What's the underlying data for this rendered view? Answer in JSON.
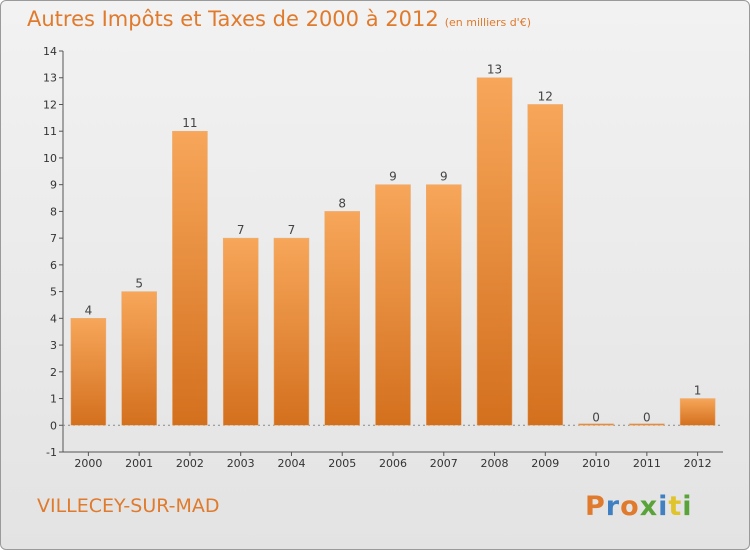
{
  "header": {
    "title": "Autres Impôts et Taxes de 2000 à 2012",
    "unit": "(en milliers d'€)"
  },
  "footer": {
    "commune": "VILLECEY-SUR-MAD",
    "logo": "Proxiti"
  },
  "colors": {
    "bar_light": "#f7a65a",
    "bar_dark": "#d3701e",
    "title": "#e07a2c",
    "logo_letters": [
      "#e07a2c",
      "#3f7fc2",
      "#e07a2c",
      "#5aa33a",
      "#3f7fc2",
      "#e0c42c",
      "#5aa33a"
    ]
  },
  "chart_data": {
    "type": "bar",
    "title": "Autres Impôts et Taxes de 2000 à 2012",
    "subtitle": "(en milliers d'€)",
    "xlabel": "",
    "ylabel": "",
    "categories": [
      "2000",
      "2001",
      "2002",
      "2003",
      "2004",
      "2005",
      "2006",
      "2007",
      "2008",
      "2009",
      "2010",
      "2011",
      "2012"
    ],
    "values": [
      4,
      5,
      11,
      7,
      7,
      8,
      9,
      9,
      13,
      12,
      0,
      0,
      1
    ],
    "ylim": [
      -1,
      14
    ],
    "yticks": [
      -1,
      0,
      1,
      2,
      3,
      4,
      5,
      6,
      7,
      8,
      9,
      10,
      11,
      12,
      13,
      14
    ],
    "data_labels": true,
    "grid": false,
    "legend": "none"
  }
}
